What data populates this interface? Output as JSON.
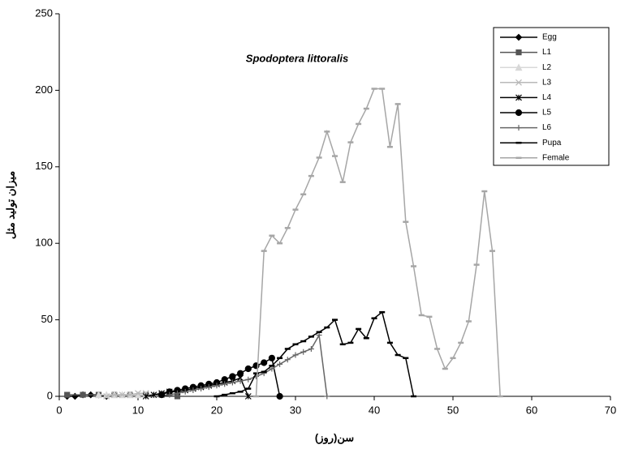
{
  "chart_data": {
    "type": "line",
    "title": "Spodoptera littoralis",
    "x_label": "سن(روز)",
    "y_label": "میزان تولید مثل",
    "xlim": [
      0,
      70
    ],
    "xticks": [
      0,
      10,
      20,
      30,
      40,
      50,
      60,
      70
    ],
    "ylim": [
      0,
      250
    ],
    "yticks": [
      0,
      50,
      100,
      150,
      200,
      250
    ],
    "grid": false,
    "legend": "upper right",
    "series": [
      {
        "name": "Egg",
        "color": "#000000",
        "marker": "diamond",
        "x": [
          1,
          2,
          3,
          4,
          5,
          6
        ],
        "values": [
          0,
          0,
          1,
          1,
          1,
          0
        ]
      },
      {
        "name": "L1",
        "color": "#555555",
        "marker": "square",
        "x": [
          1,
          3,
          5,
          7,
          9,
          11,
          13,
          15
        ],
        "values": [
          1,
          1,
          1,
          1,
          1,
          1,
          1,
          0
        ]
      },
      {
        "name": "L2",
        "color": "#d8d8d8",
        "marker": "triangle",
        "x": [
          5,
          6,
          7,
          8,
          9,
          10,
          11,
          12
        ],
        "values": [
          1,
          1,
          1,
          1,
          1,
          1,
          1,
          1
        ]
      },
      {
        "name": "L3",
        "color": "#b8b8b8",
        "marker": "x",
        "x": [
          6,
          7,
          8,
          9,
          10,
          11
        ],
        "values": [
          0,
          1,
          1,
          1,
          2,
          2
        ]
      },
      {
        "name": "L4",
        "color": "#000000",
        "marker": "star",
        "x": [
          11,
          12,
          13,
          14,
          15,
          16,
          17,
          18,
          19,
          20,
          21,
          22,
          23,
          24
        ],
        "values": [
          0,
          1,
          2,
          3,
          3,
          4,
          5,
          6,
          7,
          8,
          9,
          10,
          12,
          0
        ]
      },
      {
        "name": "L5",
        "color": "#000000",
        "marker": "circle",
        "x": [
          13,
          14,
          15,
          16,
          17,
          18,
          19,
          20,
          21,
          22,
          23,
          24,
          25,
          26,
          27,
          28
        ],
        "values": [
          1,
          3,
          4,
          5,
          6,
          7,
          8,
          9,
          11,
          13,
          15,
          18,
          20,
          22,
          25,
          0
        ]
      },
      {
        "name": "L6",
        "color": "#666666",
        "marker": "plus",
        "x": [
          14,
          15,
          16,
          17,
          18,
          19,
          20,
          21,
          22,
          23,
          24,
          25,
          26,
          27,
          28,
          29,
          30,
          31,
          32,
          33,
          34
        ],
        "values": [
          1,
          2,
          3,
          4,
          5,
          6,
          7,
          8,
          9,
          10,
          11,
          13,
          15,
          18,
          21,
          24,
          27,
          29,
          31,
          40,
          0
        ]
      },
      {
        "name": "Pupa",
        "color": "#000000",
        "marker": "dash",
        "x": [
          20,
          21,
          22,
          23,
          24,
          25,
          26,
          27,
          28,
          29,
          30,
          31,
          32,
          33,
          34,
          35,
          36,
          37,
          38,
          39,
          40,
          41,
          42,
          43,
          44,
          45
        ],
        "values": [
          0,
          1,
          2,
          3,
          5,
          15,
          16,
          20,
          25,
          31,
          34,
          36,
          39,
          42,
          45,
          50,
          34,
          35,
          44,
          38,
          51,
          55,
          35,
          27,
          25,
          0
        ]
      },
      {
        "name": "Female",
        "color": "#a6a6a6",
        "marker": "dash",
        "x": [
          25,
          26,
          27,
          28,
          29,
          30,
          31,
          32,
          33,
          34,
          35,
          36,
          37,
          38,
          39,
          40,
          41,
          42,
          43,
          44,
          45,
          46,
          47,
          48,
          49,
          50,
          51,
          52,
          53,
          54,
          55,
          56
        ],
        "values": [
          0,
          95,
          105,
          100,
          110,
          122,
          132,
          144,
          156,
          173,
          157,
          140,
          166,
          178,
          188,
          201,
          201,
          163,
          191,
          114,
          85,
          53,
          52,
          31,
          18,
          25,
          35,
          49,
          86,
          134,
          95,
          0
        ]
      }
    ]
  }
}
